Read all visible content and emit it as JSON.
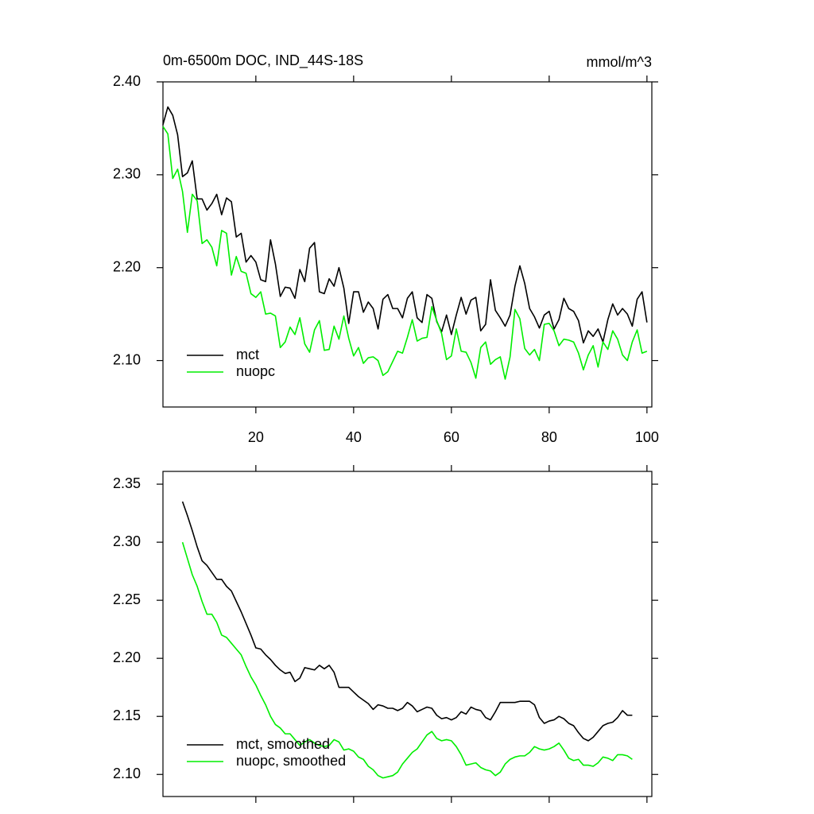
{
  "chart_data": [
    {
      "type": "line",
      "title": "0m-6500m DOC, IND_44S-18S",
      "units": "mmol/m^3",
      "x": [
        1,
        2,
        3,
        4,
        5,
        6,
        7,
        8,
        9,
        10,
        11,
        12,
        13,
        14,
        15,
        16,
        17,
        18,
        19,
        20,
        21,
        22,
        23,
        24,
        25,
        26,
        27,
        28,
        29,
        30,
        31,
        32,
        33,
        34,
        35,
        36,
        37,
        38,
        39,
        40,
        41,
        42,
        43,
        44,
        45,
        46,
        47,
        48,
        49,
        50,
        51,
        52,
        53,
        54,
        55,
        56,
        57,
        58,
        59,
        60,
        61,
        62,
        63,
        64,
        65,
        66,
        67,
        68,
        69,
        70,
        71,
        72,
        73,
        74,
        75,
        76,
        77,
        78,
        79,
        80,
        81,
        82,
        83,
        84,
        85,
        86,
        87,
        88,
        89,
        90,
        91,
        92,
        93,
        94,
        95,
        96,
        97,
        98,
        99,
        100
      ],
      "xlim": [
        1,
        101
      ],
      "xticks": [
        20,
        40,
        60,
        80,
        100
      ],
      "ylim": [
        2.05,
        2.4
      ],
      "yticks": [
        {
          "value": 2.1,
          "label": "2.10"
        },
        {
          "value": 2.2,
          "label": "2.20"
        },
        {
          "value": 2.3,
          "label": "2.30"
        },
        {
          "value": 2.4,
          "label": "2.40"
        }
      ],
      "legend": "lower left",
      "series": [
        {
          "name": "mct",
          "color": "#000000",
          "values": [
            2.354,
            2.373,
            2.364,
            2.343,
            2.298,
            2.302,
            2.315,
            2.274,
            2.274,
            2.262,
            2.269,
            2.279,
            2.257,
            2.275,
            2.271,
            2.233,
            2.237,
            2.206,
            2.213,
            2.206,
            2.187,
            2.185,
            2.23,
            2.204,
            2.169,
            2.179,
            2.178,
            2.167,
            2.198,
            2.185,
            2.221,
            2.227,
            2.174,
            2.172,
            2.188,
            2.18,
            2.2,
            2.178,
            2.14,
            2.174,
            2.174,
            2.152,
            2.163,
            2.156,
            2.134,
            2.166,
            2.171,
            2.156,
            2.156,
            2.146,
            2.167,
            2.174,
            2.146,
            2.141,
            2.171,
            2.167,
            2.142,
            2.131,
            2.149,
            2.128,
            2.149,
            2.168,
            2.15,
            2.165,
            2.168,
            2.132,
            2.139,
            2.187,
            2.154,
            2.146,
            2.137,
            2.149,
            2.18,
            2.202,
            2.183,
            2.156,
            2.147,
            2.135,
            2.149,
            2.153,
            2.134,
            2.144,
            2.167,
            2.156,
            2.153,
            2.143,
            2.119,
            2.132,
            2.126,
            2.134,
            2.12,
            2.144,
            2.161,
            2.149,
            2.156,
            2.15,
            2.137,
            2.166,
            2.174,
            2.141
          ]
        },
        {
          "name": "nuopc",
          "color": "#00ee00",
          "values": [
            2.352,
            2.344,
            2.296,
            2.306,
            2.282,
            2.238,
            2.279,
            2.272,
            2.226,
            2.23,
            2.222,
            2.202,
            2.24,
            2.237,
            2.192,
            2.212,
            2.196,
            2.194,
            2.172,
            2.168,
            2.174,
            2.15,
            2.151,
            2.148,
            2.114,
            2.12,
            2.136,
            2.128,
            2.146,
            2.118,
            2.109,
            2.133,
            2.143,
            2.111,
            2.112,
            2.137,
            2.123,
            2.148,
            2.124,
            2.105,
            2.114,
            2.097,
            2.103,
            2.104,
            2.1,
            2.084,
            2.088,
            2.099,
            2.11,
            2.108,
            2.125,
            2.144,
            2.121,
            2.124,
            2.125,
            2.158,
            2.143,
            2.129,
            2.101,
            2.105,
            2.134,
            2.11,
            2.109,
            2.098,
            2.081,
            2.114,
            2.12,
            2.096,
            2.101,
            2.104,
            2.08,
            2.104,
            2.155,
            2.145,
            2.113,
            2.106,
            2.112,
            2.1,
            2.139,
            2.14,
            2.132,
            2.116,
            2.123,
            2.122,
            2.12,
            2.108,
            2.09,
            2.106,
            2.116,
            2.093,
            2.12,
            2.112,
            2.132,
            2.123,
            2.106,
            2.1,
            2.12,
            2.133,
            2.108,
            2.11
          ]
        }
      ]
    },
    {
      "type": "line",
      "x": [
        5,
        6,
        7,
        8,
        9,
        10,
        11,
        12,
        13,
        14,
        15,
        16,
        17,
        18,
        19,
        20,
        21,
        22,
        23,
        24,
        25,
        26,
        27,
        28,
        29,
        30,
        31,
        32,
        33,
        34,
        35,
        36,
        37,
        38,
        39,
        40,
        41,
        42,
        43,
        44,
        45,
        46,
        47,
        48,
        49,
        50,
        51,
        52,
        53,
        54,
        55,
        56,
        57,
        58,
        59,
        60,
        61,
        62,
        63,
        64,
        65,
        66,
        67,
        68,
        69,
        70,
        71,
        72,
        73,
        74,
        75,
        76,
        77,
        78,
        79,
        80,
        81,
        82,
        83,
        84,
        85,
        86,
        87,
        88,
        89,
        90,
        91,
        92,
        93,
        94,
        95,
        96,
        97
      ],
      "xlim": [
        1,
        101
      ],
      "xticks": [
        20,
        40,
        60,
        80,
        100
      ],
      "ylim": [
        2.081,
        2.361
      ],
      "yticks": [
        {
          "value": 2.1,
          "label": "2.10"
        },
        2.15,
        {
          "value": 2.2,
          "label": "2.20"
        },
        2.25,
        {
          "value": 2.3,
          "label": "2.30"
        },
        2.35
      ],
      "legend": "lower left",
      "series": [
        {
          "name": "mct, smoothed",
          "color": "#000000",
          "values": [
            2.335,
            2.323,
            2.31,
            2.296,
            2.284,
            2.28,
            2.274,
            2.268,
            2.268,
            2.262,
            2.258,
            2.249,
            2.24,
            2.23,
            2.22,
            2.209,
            2.208,
            2.203,
            2.199,
            2.194,
            2.19,
            2.187,
            2.188,
            2.18,
            2.183,
            2.192,
            2.191,
            2.19,
            2.194,
            2.191,
            2.194,
            2.188,
            2.175,
            2.175,
            2.175,
            2.171,
            2.167,
            2.164,
            2.161,
            2.156,
            2.16,
            2.159,
            2.157,
            2.157,
            2.155,
            2.157,
            2.162,
            2.159,
            2.154,
            2.156,
            2.158,
            2.157,
            2.151,
            2.148,
            2.149,
            2.147,
            2.149,
            2.154,
            2.152,
            2.158,
            2.156,
            2.155,
            2.149,
            2.147,
            2.154,
            2.162,
            2.162,
            2.162,
            2.162,
            2.163,
            2.163,
            2.163,
            2.16,
            2.149,
            2.144,
            2.146,
            2.147,
            2.15,
            2.148,
            2.144,
            2.142,
            2.136,
            2.131,
            2.129,
            2.132,
            2.137,
            2.142,
            2.144,
            2.145,
            2.149,
            2.155,
            2.151,
            2.151
          ]
        },
        {
          "name": "nuopc, smoothed",
          "color": "#00ee00",
          "values": [
            2.3,
            2.286,
            2.272,
            2.262,
            2.249,
            2.238,
            2.238,
            2.231,
            2.22,
            2.218,
            2.213,
            2.208,
            2.203,
            2.193,
            2.184,
            2.177,
            2.168,
            2.16,
            2.15,
            2.143,
            2.14,
            2.135,
            2.135,
            2.13,
            2.125,
            2.128,
            2.13,
            2.127,
            2.125,
            2.124,
            2.125,
            2.13,
            2.128,
            2.121,
            2.122,
            2.12,
            2.115,
            2.113,
            2.107,
            2.104,
            2.099,
            2.097,
            2.098,
            2.099,
            2.102,
            2.109,
            2.114,
            2.119,
            2.122,
            2.128,
            2.134,
            2.137,
            2.131,
            2.129,
            2.13,
            2.129,
            2.124,
            2.117,
            2.108,
            2.109,
            2.11,
            2.106,
            2.104,
            2.103,
            2.099,
            2.102,
            2.109,
            2.113,
            2.115,
            2.116,
            2.116,
            2.119,
            2.124,
            2.122,
            2.121,
            2.122,
            2.124,
            2.127,
            2.121,
            2.114,
            2.112,
            2.113,
            2.108,
            2.108,
            2.107,
            2.11,
            2.115,
            2.114,
            2.112,
            2.117,
            2.117,
            2.116,
            2.113
          ]
        }
      ]
    }
  ]
}
